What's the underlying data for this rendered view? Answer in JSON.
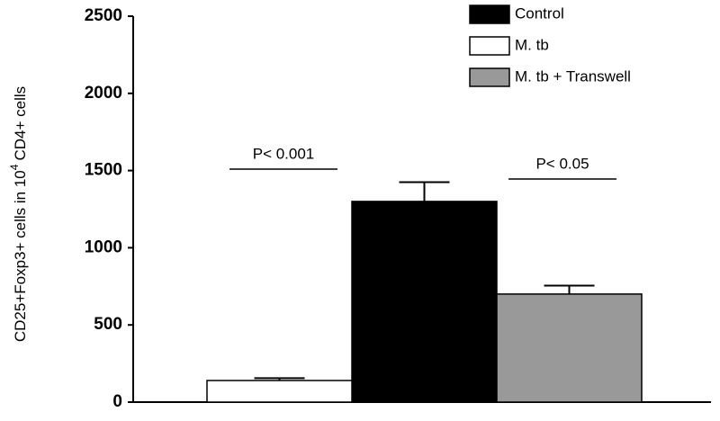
{
  "chart_data": {
    "type": "bar",
    "ylabel": "CD25+Foxp3+ cells in 10",
    "ylabel_sup": "4",
    "ylabel_end": "CD4+ cells",
    "categories": [
      null,
      null,
      null
    ],
    "series": [
      {
        "name": "Control",
        "color": "#000000",
        "values": [
          null,
          1300,
          null
        ],
        "errors": [
          null,
          125,
          null
        ]
      },
      {
        "name": "M. tb",
        "color": "#ffffff",
        "values": [
          140,
          null,
          null
        ],
        "errors": [
          15,
          null,
          null
        ]
      },
      {
        "name": "M. tb + Transwell",
        "color": "#999999",
        "values": [
          null,
          null,
          700
        ],
        "errors": [
          null,
          null,
          55
        ]
      }
    ],
    "annotations": [
      "P< 0.001",
      "P< 0.05"
    ],
    "ylim": [
      0,
      2500
    ],
    "yticks": [
      0,
      500,
      1000,
      1500,
      2000,
      2500
    ],
    "grid": false,
    "legend": "top-right"
  }
}
